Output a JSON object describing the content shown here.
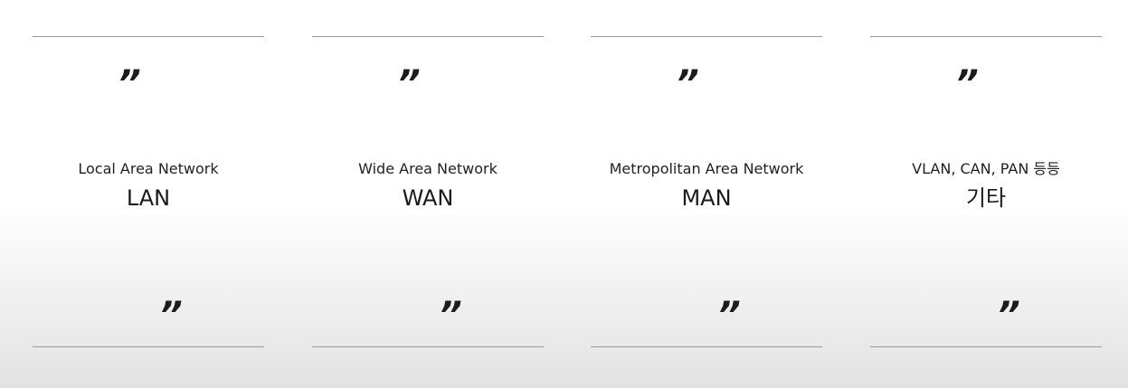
{
  "quote_open": "”",
  "quote_close": "”",
  "cards": [
    {
      "subtitle": "Local Area Network",
      "title": "LAN"
    },
    {
      "subtitle": "Wide Area Network",
      "title": "WAN"
    },
    {
      "subtitle": "Metropolitan Area Network",
      "title": "MAN"
    },
    {
      "subtitle": "VLAN, CAN, PAN 등등",
      "title": "기타"
    }
  ]
}
